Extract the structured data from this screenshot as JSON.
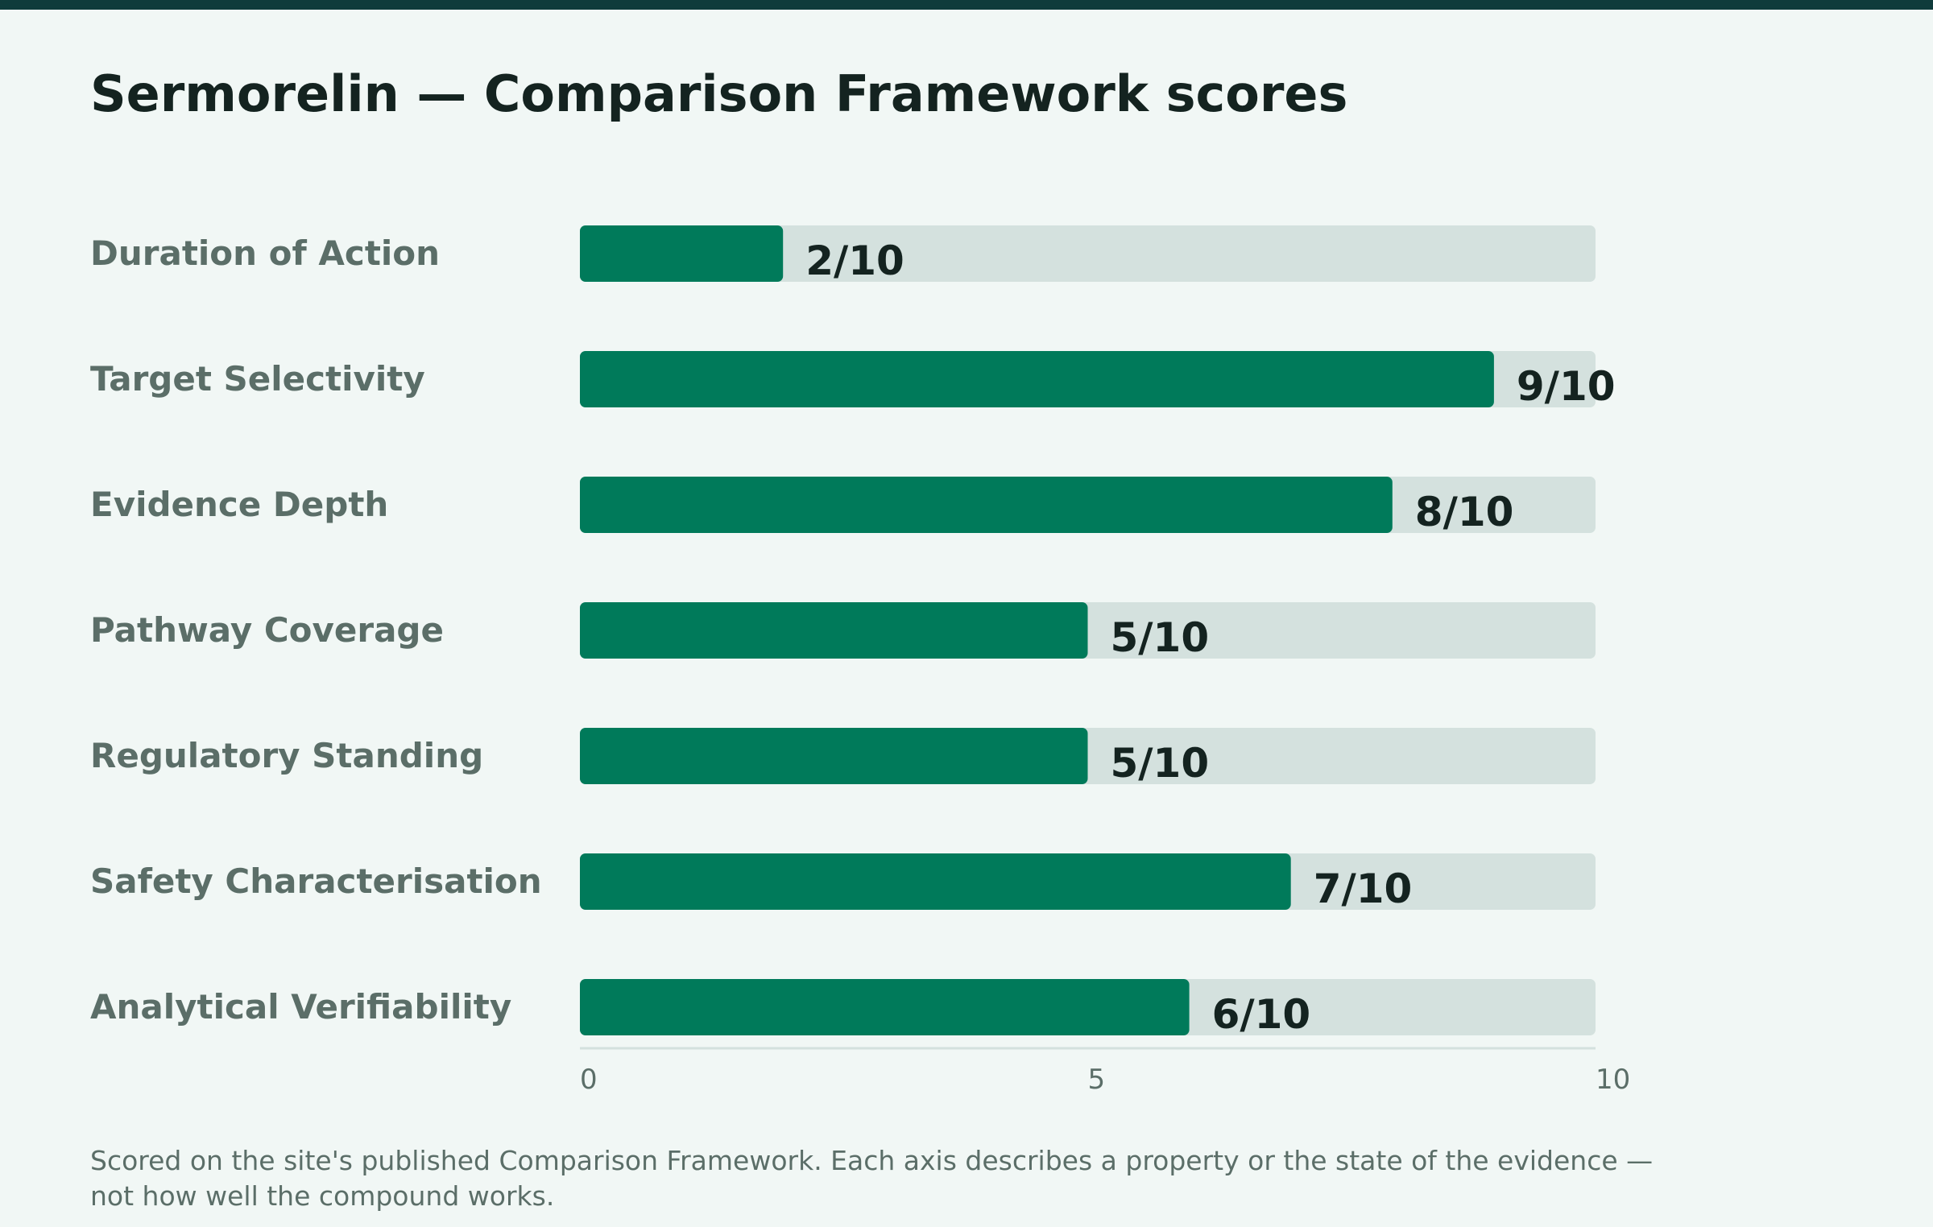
{
  "colors": {
    "header_bar": "#0f3b3b",
    "background": "#f1f7f5",
    "bar_fill": "#007a5a",
    "bar_track": "#d4e1de",
    "category_label": "#5b6e68",
    "value_label": "#142320",
    "axis_line": "#d4e1de",
    "tick_label": "#5b6e68"
  },
  "chart_data": {
    "type": "bar",
    "orientation": "horizontal",
    "title": "Sermorelin — Comparison Framework scores",
    "categories": [
      "Duration of Action",
      "Target Selectivity",
      "Evidence Depth",
      "Pathway Coverage",
      "Regulatory Standing",
      "Safety Characterisation",
      "Analytical Verifiability"
    ],
    "values": [
      2,
      9,
      8,
      5,
      5,
      7,
      6
    ],
    "value_labels": [
      "2/10",
      "9/10",
      "8/10",
      "5/10",
      "5/10",
      "7/10",
      "6/10"
    ],
    "xlim": [
      0,
      10
    ],
    "x_ticks": [
      0,
      5,
      10
    ],
    "x_tick_labels": [
      "0",
      "5",
      "10"
    ],
    "grid": false,
    "legend": "none"
  },
  "footnote": "Scored on the site's published Comparison Framework. Each axis describes a property or the state of the evidence — not how well the compound works."
}
